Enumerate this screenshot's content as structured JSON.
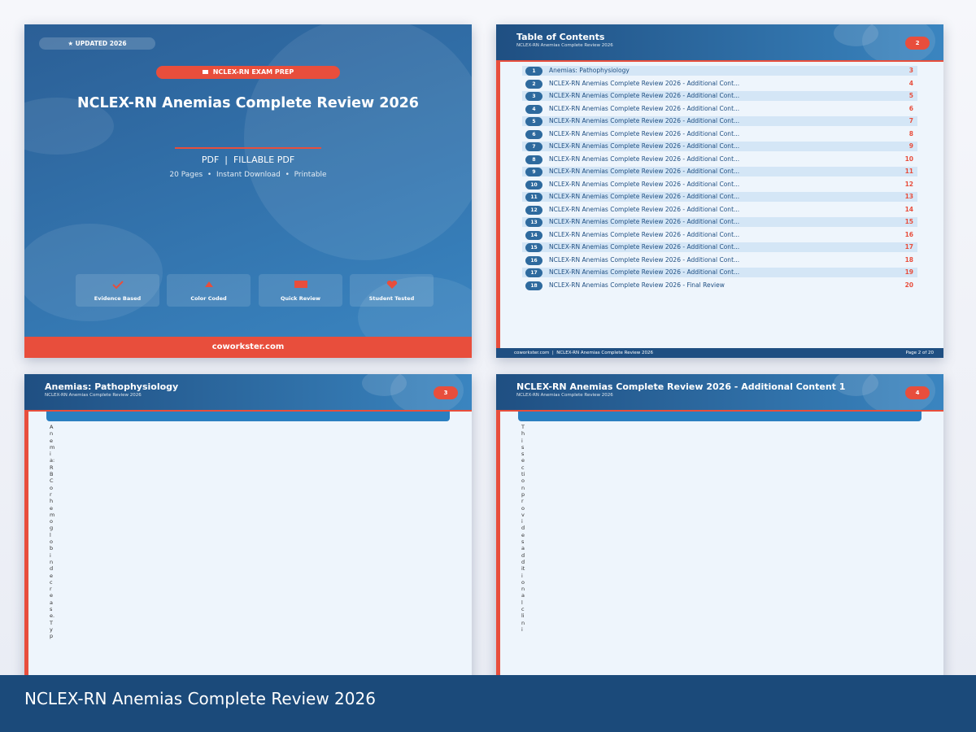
{
  "cover": {
    "badge": "★ UPDATED 2026",
    "tag": "NCLEX-RN EXAM PREP",
    "title": "NCLEX-RN Anemias Complete Review 2026",
    "formats": "PDF  |  FILLABLE PDF",
    "meta": "20 Pages  •  Instant Download  •  Printable",
    "features": [
      "Evidence Based",
      "Color Coded",
      "Quick Review",
      "Student Tested"
    ],
    "footer": "coworkster.com"
  },
  "toc_page": {
    "title": "Table of Contents",
    "subtitle": "NCLEX-RN Anemias Complete Review 2026",
    "page_badge": 2,
    "entries": [
      {
        "num": 1,
        "title": "Anemias: Pathophysiology",
        "page": 3
      },
      {
        "num": 2,
        "title": "NCLEX-RN Anemias Complete Review 2026 - Additional Cont...",
        "page": 4
      },
      {
        "num": 3,
        "title": "NCLEX-RN Anemias Complete Review 2026 - Additional Cont...",
        "page": 5
      },
      {
        "num": 4,
        "title": "NCLEX-RN Anemias Complete Review 2026 - Additional Cont...",
        "page": 6
      },
      {
        "num": 5,
        "title": "NCLEX-RN Anemias Complete Review 2026 - Additional Cont...",
        "page": 7
      },
      {
        "num": 6,
        "title": "NCLEX-RN Anemias Complete Review 2026 - Additional Cont...",
        "page": 8
      },
      {
        "num": 7,
        "title": "NCLEX-RN Anemias Complete Review 2026 - Additional Cont...",
        "page": 9
      },
      {
        "num": 8,
        "title": "NCLEX-RN Anemias Complete Review 2026 - Additional Cont...",
        "page": 10
      },
      {
        "num": 9,
        "title": "NCLEX-RN Anemias Complete Review 2026 - Additional Cont...",
        "page": 11
      },
      {
        "num": 10,
        "title": "NCLEX-RN Anemias Complete Review 2026 - Additional Cont...",
        "page": 12
      },
      {
        "num": 11,
        "title": "NCLEX-RN Anemias Complete Review 2026 - Additional Cont...",
        "page": 13
      },
      {
        "num": 12,
        "title": "NCLEX-RN Anemias Complete Review 2026 - Additional Cont...",
        "page": 14
      },
      {
        "num": 13,
        "title": "NCLEX-RN Anemias Complete Review 2026 - Additional Cont...",
        "page": 15
      },
      {
        "num": 14,
        "title": "NCLEX-RN Anemias Complete Review 2026 - Additional Cont...",
        "page": 16
      },
      {
        "num": 15,
        "title": "NCLEX-RN Anemias Complete Review 2026 - Additional Cont...",
        "page": 17
      },
      {
        "num": 16,
        "title": "NCLEX-RN Anemias Complete Review 2026 - Additional Cont...",
        "page": 18
      },
      {
        "num": 17,
        "title": "NCLEX-RN Anemias Complete Review 2026 - Additional Cont...",
        "page": 19
      },
      {
        "num": 18,
        "title": "NCLEX-RN Anemias Complete Review 2026 - Final Review",
        "page": 20
      }
    ],
    "footer_left": "coworkster.com  |  NCLEX-RN Anemias Complete Review 2026",
    "footer_right": "Page 2 of 20"
  },
  "pages": [
    {
      "title": "Anemias: Pathophysiology",
      "subtitle": "NCLEX-RN Anemias Complete Review 2026",
      "page_badge": 3,
      "body": "Anemia: RBC or hemoglobin decrease. Typ"
    },
    {
      "title": "NCLEX-RN Anemias Complete Review 2026 - Additional Content 1",
      "subtitle": "NCLEX-RN Anemias Complete Review 2026",
      "page_badge": 4,
      "body": "This section provides additional clini"
    }
  ],
  "caption": "NCLEX-RN Anemias Complete Review 2026"
}
